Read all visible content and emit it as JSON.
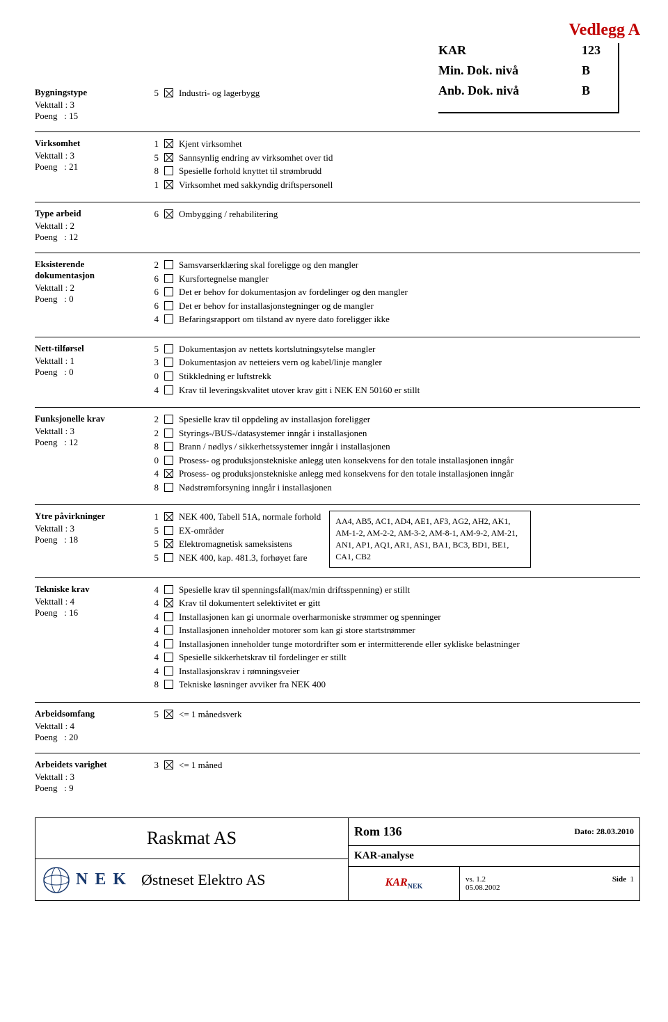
{
  "appendix": "Vedlegg A",
  "header": {
    "kar_label": "KAR",
    "kar_val": "123",
    "min_label": "Min. Dok. nivå",
    "min_val": "B",
    "anb_label": "Anb. Dok. nivå",
    "anb_val": "B"
  },
  "sections": [
    {
      "title": "Bygningstype",
      "vekttall": "Vekttall : 3",
      "poeng": "Poeng   : 15",
      "items": [
        {
          "n": "5",
          "checked": true,
          "label": "Industri- og lagerbygg"
        }
      ]
    },
    {
      "title": "Virksomhet",
      "vekttall": "Vekttall : 3",
      "poeng": "Poeng   : 21",
      "items": [
        {
          "n": "1",
          "checked": true,
          "label": "Kjent virksomhet"
        },
        {
          "n": "5",
          "checked": true,
          "label": "Sannsynlig endring av virksomhet over tid"
        },
        {
          "n": "8",
          "checked": false,
          "label": "Spesielle forhold knyttet til strømbrudd"
        },
        {
          "n": "1",
          "checked": true,
          "label": "Virksomhet med sakkyndig driftspersonell"
        }
      ]
    },
    {
      "title": "Type arbeid",
      "vekttall": "Vekttall : 2",
      "poeng": "Poeng   : 12",
      "items": [
        {
          "n": "6",
          "checked": true,
          "label": "Ombygging / rehabilitering"
        }
      ]
    },
    {
      "title": "Eksisterende dokumentasjon",
      "vekttall": "Vekttall : 2",
      "poeng": "Poeng   : 0",
      "items": [
        {
          "n": "2",
          "checked": false,
          "label": "Samsvarserklæring skal foreligge og den mangler"
        },
        {
          "n": "6",
          "checked": false,
          "label": "Kursfortegnelse mangler"
        },
        {
          "n": "6",
          "checked": false,
          "label": "Det er behov for dokumentasjon av fordelinger og den mangler"
        },
        {
          "n": "6",
          "checked": false,
          "label": "Det er behov for installasjonstegninger og de mangler"
        },
        {
          "n": "4",
          "checked": false,
          "label": "Befaringsrapport om tilstand av nyere dato foreligger ikke"
        }
      ]
    },
    {
      "title": "Nett-tilførsel",
      "vekttall": "Vekttall : 1",
      "poeng": "Poeng   : 0",
      "items": [
        {
          "n": "5",
          "checked": false,
          "label": "Dokumentasjon av nettets kortslutningsytelse mangler"
        },
        {
          "n": "3",
          "checked": false,
          "label": "Dokumentasjon av netteiers vern og kabel/linje mangler"
        },
        {
          "n": "0",
          "checked": false,
          "label": "Stikkledning er luftstrekk"
        },
        {
          "n": "4",
          "checked": false,
          "label": "Krav til leveringskvalitet utover krav gitt i NEK EN 50160 er stillt"
        }
      ]
    },
    {
      "title": "Funksjonelle krav",
      "vekttall": "Vekttall : 3",
      "poeng": "Poeng   : 12",
      "items": [
        {
          "n": "2",
          "checked": false,
          "label": "Spesielle krav til oppdeling av installasjon foreligger"
        },
        {
          "n": "2",
          "checked": false,
          "label": "Styrings-/BUS-/datasystemer inngår i installasjonen"
        },
        {
          "n": "8",
          "checked": false,
          "label": "Brann / nødlys / sikkerhetssystemer inngår i installasjonen"
        },
        {
          "n": "0",
          "checked": false,
          "label": "Prosess- og produksjonstekniske anlegg uten konsekvens for den totale installasjonen inngår"
        },
        {
          "n": "4",
          "checked": true,
          "label": "Prosess- og produksjonstekniske anlegg med konsekvens for den totale installasjonen inngår"
        },
        {
          "n": "8",
          "checked": false,
          "label": "Nødstrømforsyning inngår i installasjonen"
        }
      ]
    },
    {
      "title": "Ytre påvirkninger",
      "vekttall": "Vekttall : 3",
      "poeng": "Poeng   : 18",
      "items": [
        {
          "n": "1",
          "checked": true,
          "label": "NEK 400, Tabell 51A, normale forhold"
        },
        {
          "n": "5",
          "checked": false,
          "label": "EX-områder"
        },
        {
          "n": "5",
          "checked": true,
          "label": "Elektromagnetisk sameksistens"
        },
        {
          "n": "5",
          "checked": false,
          "label": "NEK 400, kap. 481.3, forhøyet fare"
        }
      ],
      "sidebox": "AA4, AB5, AC1, AD4, AE1, AF3, AG2, AH2, AK1, AM-1-2, AM-2-2, AM-3-2, AM-8-1, AM-9-2, AM-21, AN1, AP1, AQ1, AR1, AS1, BA1, BC3, BD1, BE1, CA1, CB2"
    },
    {
      "title": "Tekniske krav",
      "vekttall": "Vekttall : 4",
      "poeng": "Poeng   : 16",
      "items": [
        {
          "n": "4",
          "checked": false,
          "label": "Spesielle krav til spenningsfall(max/min driftsspenning) er stillt"
        },
        {
          "n": "4",
          "checked": true,
          "label": "Krav til dokumentert selektivitet er gitt"
        },
        {
          "n": "4",
          "checked": false,
          "label": "Installasjonen kan gi unormale overharmoniske strømmer og spenninger"
        },
        {
          "n": "4",
          "checked": false,
          "label": "Installasjonen inneholder motorer som kan gi store startstrømmer"
        },
        {
          "n": "4",
          "checked": false,
          "label": "Installasjonen inneholder tunge motordrifter som er intermitterende eller sykliske belastninger"
        },
        {
          "n": "4",
          "checked": false,
          "label": "Spesielle sikkerhetskrav til fordelinger er stillt"
        },
        {
          "n": "4",
          "checked": false,
          "label": "Installasjonskrav i rømningsveier"
        },
        {
          "n": "8",
          "checked": false,
          "label": "Tekniske løsninger avviker fra NEK 400"
        }
      ]
    },
    {
      "title": "Arbeidsomfang",
      "vekttall": "Vekttall : 4",
      "poeng": "Poeng   : 20",
      "items": [
        {
          "n": "5",
          "checked": true,
          "label": "<= 1 månedsverk"
        }
      ]
    },
    {
      "title": "Arbeidets varighet",
      "vekttall": "Vekttall : 3",
      "poeng": "Poeng   : 9",
      "items": [
        {
          "n": "3",
          "checked": true,
          "label": "<= 1 måned"
        }
      ]
    }
  ],
  "footer": {
    "company1": "Raskmat AS",
    "company2": "Østneset Elektro AS",
    "rom": "Rom 136",
    "dato": "Dato: 28.03.2010",
    "analyse": "KAR-analyse",
    "vs": "vs.  1.2",
    "date2": "05.08.2002",
    "side_label": "Side",
    "side_num": "1",
    "nek": "N E K",
    "kar_brand_k": "KAR",
    "kar_brand_nek": "NEK"
  }
}
